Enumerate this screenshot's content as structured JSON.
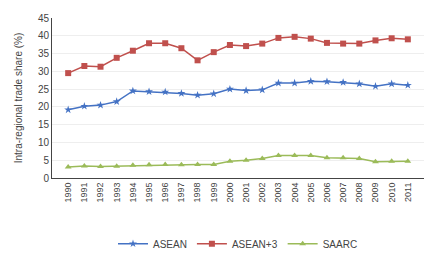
{
  "chart_data": {
    "type": "line",
    "x": [
      1990,
      1991,
      1992,
      1993,
      1994,
      1995,
      1996,
      1997,
      1998,
      1999,
      2000,
      2001,
      2002,
      2003,
      2004,
      2005,
      2006,
      2007,
      2008,
      2009,
      2010,
      2011
    ],
    "series": [
      {
        "name": "ASEAN",
        "color": "#4472C4",
        "marker": "star",
        "values": [
          19.2,
          20.2,
          20.5,
          21.5,
          24.5,
          24.3,
          24.2,
          23.8,
          23.3,
          23.7,
          25.0,
          24.6,
          24.8,
          26.7,
          26.7,
          27.2,
          27.1,
          26.9,
          26.5,
          25.8,
          26.5,
          26.1
        ]
      },
      {
        "name": "ASEAN+3",
        "color": "#C0504D",
        "marker": "square",
        "values": [
          29.5,
          31.5,
          31.3,
          33.8,
          35.8,
          37.9,
          37.9,
          36.5,
          33.1,
          35.4,
          37.4,
          37.1,
          37.8,
          39.4,
          39.7,
          39.2,
          38.0,
          37.8,
          37.8,
          38.7,
          39.3,
          39.0
        ]
      },
      {
        "name": "SAARC",
        "color": "#9BBB59",
        "marker": "triangle-up",
        "values": [
          3.1,
          3.4,
          3.2,
          3.3,
          3.6,
          3.7,
          3.8,
          3.7,
          3.8,
          3.8,
          4.7,
          5.0,
          5.5,
          6.3,
          6.3,
          6.3,
          5.7,
          5.7,
          5.5,
          4.6,
          4.7,
          4.7
        ]
      }
    ],
    "ylabel": "Intra-regional trade share (%)",
    "xlim": [
      1989,
      2012
    ],
    "xticks": [
      1990,
      1991,
      1992,
      1993,
      1994,
      1995,
      1996,
      1997,
      1998,
      1999,
      2000,
      2001,
      2002,
      2003,
      2004,
      2005,
      2006,
      2007,
      2008,
      2009,
      2010,
      2011
    ],
    "ylim": [
      0,
      45
    ],
    "yticks": [
      0,
      5,
      10,
      15,
      20,
      25,
      30,
      35,
      40,
      45
    ],
    "grid": "y",
    "legend": "bottom"
  }
}
